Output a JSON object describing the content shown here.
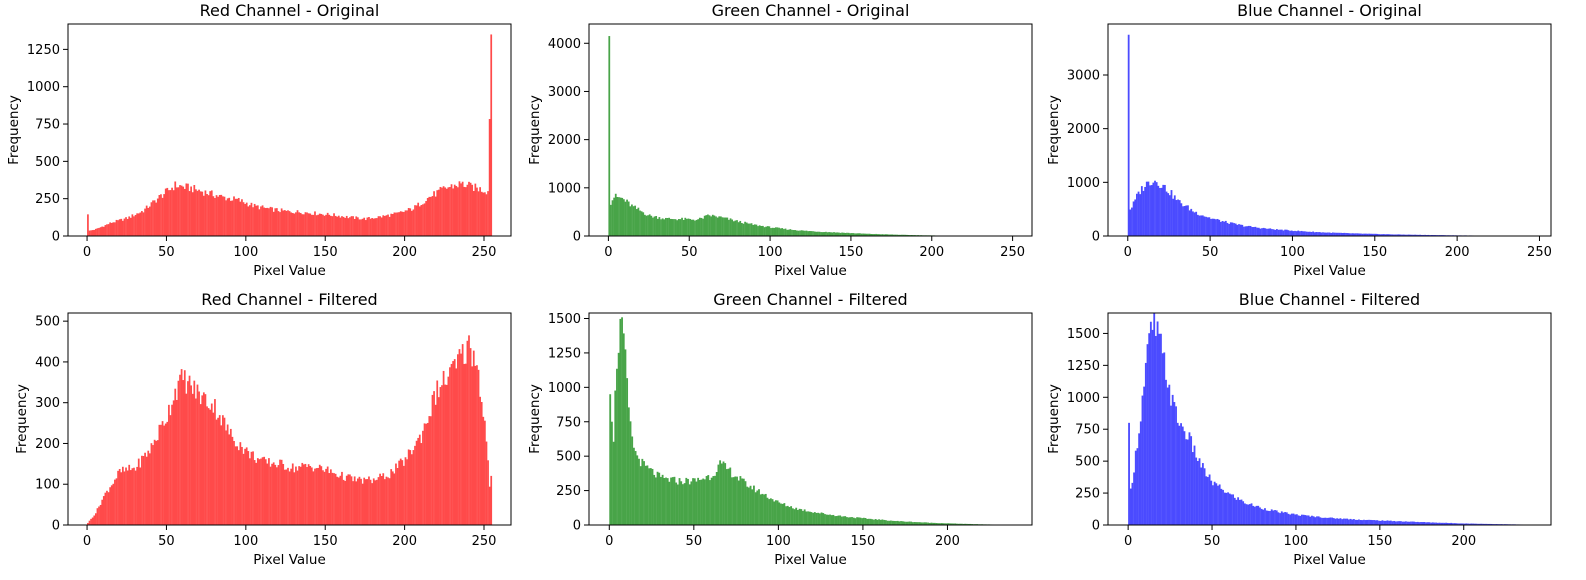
{
  "figure": {
    "xlabel": "Pixel Value",
    "ylabel": "Frequency"
  },
  "colors": {
    "Red": "#ff4a4a",
    "Green": "#48a448",
    "Blue": "#4b4bff"
  },
  "chart_data": [
    {
      "type": "bar",
      "id": "red-original",
      "title": "Red Channel - Original",
      "xlabel": "Pixel Value",
      "ylabel": "Frequency",
      "xlim": [
        -12,
        267
      ],
      "ylim": [
        0,
        1420
      ],
      "xticks": [
        0,
        50,
        100,
        150,
        200,
        250
      ],
      "yticks": [
        0,
        250,
        500,
        750,
        1000,
        1250
      ],
      "color": "Red",
      "bin_range": [
        0,
        255
      ],
      "profile": [
        [
          0,
          145
        ],
        [
          1,
          35
        ],
        [
          5,
          45
        ],
        [
          15,
          90
        ],
        [
          25,
          120
        ],
        [
          35,
          170
        ],
        [
          45,
          260
        ],
        [
          55,
          340
        ],
        [
          65,
          320
        ],
        [
          75,
          290
        ],
        [
          85,
          260
        ],
        [
          95,
          240
        ],
        [
          105,
          200
        ],
        [
          115,
          180
        ],
        [
          125,
          165
        ],
        [
          135,
          160
        ],
        [
          145,
          150
        ],
        [
          155,
          140
        ],
        [
          165,
          125
        ],
        [
          175,
          115
        ],
        [
          185,
          130
        ],
        [
          195,
          150
        ],
        [
          205,
          185
        ],
        [
          215,
          260
        ],
        [
          225,
          320
        ],
        [
          235,
          350
        ],
        [
          245,
          320
        ],
        [
          252,
          300
        ],
        [
          254,
          1350
        ]
      ],
      "grid": false
    },
    {
      "type": "bar",
      "id": "green-original",
      "title": "Green Channel - Original",
      "xlabel": "Pixel Value",
      "ylabel": "Frequency",
      "xlim": [
        -12,
        262
      ],
      "ylim": [
        0,
        4400
      ],
      "xticks": [
        0,
        50,
        100,
        150,
        200,
        250
      ],
      "yticks": [
        0,
        1000,
        2000,
        3000,
        4000
      ],
      "color": "Green",
      "bin_range": [
        0,
        250
      ],
      "profile": [
        [
          0,
          4150
        ],
        [
          1,
          700
        ],
        [
          3,
          820
        ],
        [
          8,
          780
        ],
        [
          15,
          600
        ],
        [
          25,
          420
        ],
        [
          35,
          360
        ],
        [
          45,
          350
        ],
        [
          55,
          340
        ],
        [
          62,
          430
        ],
        [
          70,
          380
        ],
        [
          80,
          300
        ],
        [
          90,
          230
        ],
        [
          100,
          180
        ],
        [
          110,
          140
        ],
        [
          120,
          110
        ],
        [
          130,
          90
        ],
        [
          140,
          75
        ],
        [
          150,
          60
        ],
        [
          160,
          45
        ],
        [
          170,
          35
        ],
        [
          180,
          25
        ],
        [
          190,
          18
        ],
        [
          200,
          12
        ],
        [
          210,
          7
        ],
        [
          220,
          4
        ],
        [
          230,
          2
        ],
        [
          240,
          1
        ],
        [
          250,
          1
        ]
      ],
      "grid": false
    },
    {
      "type": "bar",
      "id": "blue-original",
      "title": "Blue Channel - Original",
      "xlabel": "Pixel Value",
      "ylabel": "Frequency",
      "xlim": [
        -12,
        257
      ],
      "ylim": [
        0,
        3950
      ],
      "xticks": [
        0,
        50,
        100,
        150,
        200,
        250
      ],
      "yticks": [
        0,
        1000,
        2000,
        3000
      ],
      "color": "Blue",
      "bin_range": [
        0,
        245
      ],
      "profile": [
        [
          0,
          3750
        ],
        [
          1,
          500
        ],
        [
          3,
          600
        ],
        [
          6,
          800
        ],
        [
          10,
          950
        ],
        [
          15,
          1050
        ],
        [
          20,
          960
        ],
        [
          25,
          820
        ],
        [
          30,
          650
        ],
        [
          40,
          450
        ],
        [
          50,
          330
        ],
        [
          60,
          250
        ],
        [
          70,
          190
        ],
        [
          80,
          150
        ],
        [
          90,
          120
        ],
        [
          100,
          100
        ],
        [
          110,
          80
        ],
        [
          120,
          65
        ],
        [
          140,
          45
        ],
        [
          160,
          30
        ],
        [
          180,
          20
        ],
        [
          200,
          12
        ],
        [
          220,
          6
        ],
        [
          245,
          2
        ]
      ],
      "grid": false
    },
    {
      "type": "bar",
      "id": "red-filtered",
      "title": "Red Channel - Filtered",
      "xlabel": "Pixel Value",
      "ylabel": "Frequency",
      "xlim": [
        -12,
        267
      ],
      "ylim": [
        0,
        520
      ],
      "xticks": [
        0,
        50,
        100,
        150,
        200,
        250
      ],
      "yticks": [
        0,
        100,
        200,
        300,
        400,
        500
      ],
      "color": "Red",
      "bin_range": [
        0,
        255
      ],
      "profile": [
        [
          0,
          5
        ],
        [
          5,
          30
        ],
        [
          10,
          70
        ],
        [
          20,
          130
        ],
        [
          30,
          140
        ],
        [
          40,
          190
        ],
        [
          50,
          270
        ],
        [
          55,
          330
        ],
        [
          60,
          360
        ],
        [
          70,
          320
        ],
        [
          80,
          290
        ],
        [
          90,
          220
        ],
        [
          100,
          180
        ],
        [
          110,
          155
        ],
        [
          120,
          150
        ],
        [
          130,
          140
        ],
        [
          140,
          145
        ],
        [
          150,
          135
        ],
        [
          160,
          120
        ],
        [
          170,
          110
        ],
        [
          180,
          110
        ],
        [
          190,
          125
        ],
        [
          200,
          160
        ],
        [
          210,
          220
        ],
        [
          220,
          330
        ],
        [
          230,
          380
        ],
        [
          240,
          440
        ],
        [
          245,
          400
        ],
        [
          250,
          250
        ],
        [
          253,
          100
        ],
        [
          255,
          140
        ]
      ],
      "grid": false
    },
    {
      "type": "bar",
      "id": "green-filtered",
      "title": "Green Channel - Filtered",
      "xlabel": "Pixel Value",
      "ylabel": "Frequency",
      "xlim": [
        -12,
        250
      ],
      "ylim": [
        0,
        1540
      ],
      "xticks": [
        0,
        50,
        100,
        150,
        200
      ],
      "yticks": [
        0,
        250,
        500,
        750,
        1000,
        1250,
        1500
      ],
      "color": "Green",
      "bin_range": [
        0,
        235
      ],
      "profile": [
        [
          0,
          950
        ],
        [
          2,
          650
        ],
        [
          4,
          1200
        ],
        [
          6,
          1450
        ],
        [
          8,
          1350
        ],
        [
          10,
          1000
        ],
        [
          12,
          700
        ],
        [
          15,
          520
        ],
        [
          20,
          430
        ],
        [
          30,
          340
        ],
        [
          40,
          320
        ],
        [
          50,
          320
        ],
        [
          60,
          360
        ],
        [
          65,
          440
        ],
        [
          70,
          400
        ],
        [
          80,
          300
        ],
        [
          90,
          230
        ],
        [
          100,
          160
        ],
        [
          110,
          120
        ],
        [
          120,
          95
        ],
        [
          130,
          75
        ],
        [
          140,
          60
        ],
        [
          150,
          48
        ],
        [
          160,
          38
        ],
        [
          170,
          28
        ],
        [
          180,
          22
        ],
        [
          190,
          16
        ],
        [
          200,
          12
        ],
        [
          210,
          8
        ],
        [
          220,
          5
        ],
        [
          235,
          2
        ]
      ],
      "grid": false
    },
    {
      "type": "bar",
      "id": "blue-filtered",
      "title": "Blue Channel - Filtered",
      "xlabel": "Pixel Value",
      "ylabel": "Frequency",
      "xlim": [
        -12,
        252
      ],
      "ylim": [
        0,
        1660
      ],
      "xticks": [
        0,
        50,
        100,
        150,
        200
      ],
      "yticks": [
        0,
        250,
        500,
        750,
        1000,
        1250,
        1500
      ],
      "color": "Blue",
      "bin_range": [
        0,
        238
      ],
      "profile": [
        [
          0,
          800
        ],
        [
          1,
          270
        ],
        [
          3,
          450
        ],
        [
          6,
          750
        ],
        [
          9,
          1100
        ],
        [
          12,
          1450
        ],
        [
          15,
          1570
        ],
        [
          18,
          1450
        ],
        [
          22,
          1200
        ],
        [
          26,
          950
        ],
        [
          30,
          800
        ],
        [
          35,
          700
        ],
        [
          40,
          550
        ],
        [
          45,
          420
        ],
        [
          50,
          330
        ],
        [
          60,
          240
        ],
        [
          70,
          170
        ],
        [
          80,
          130
        ],
        [
          90,
          100
        ],
        [
          100,
          80
        ],
        [
          120,
          55
        ],
        [
          140,
          40
        ],
        [
          160,
          30
        ],
        [
          180,
          20
        ],
        [
          200,
          12
        ],
        [
          220,
          7
        ],
        [
          238,
          3
        ]
      ],
      "grid": false
    }
  ]
}
